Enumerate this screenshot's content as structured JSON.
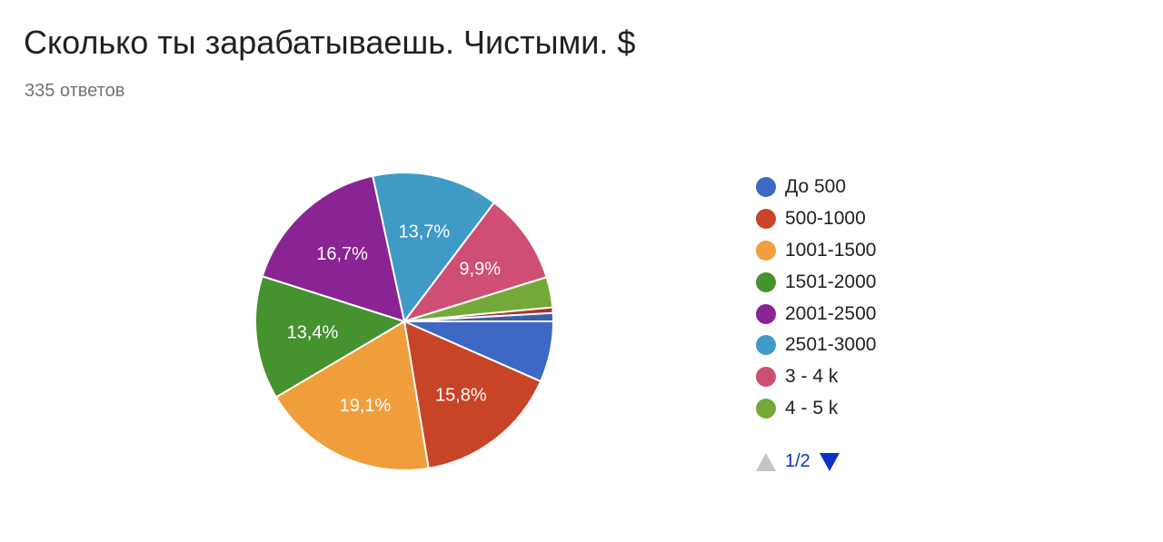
{
  "title": "Сколько ты зарабатываешь. Чистыми. $",
  "response_count": "335 ответов",
  "pager": {
    "label": "1/2",
    "up_icon": "triangle-up-icon",
    "down_icon": "triangle-down-icon"
  },
  "chart_data": {
    "type": "pie",
    "title": "Сколько ты зарабатываешь. Чистыми. $",
    "slices": [
      {
        "label": "До 500",
        "value": 6.6,
        "color": "#3e68c6"
      },
      {
        "label": "500-1000",
        "value": 15.8,
        "color": "#c84427",
        "display": "15,8%"
      },
      {
        "label": "1001-1500",
        "value": 19.1,
        "color": "#f09e3b",
        "display": "19,1%"
      },
      {
        "label": "1501-2000",
        "value": 13.4,
        "color": "#45922f",
        "display": "13,4%"
      },
      {
        "label": "2001-2500",
        "value": 16.7,
        "color": "#8a2394",
        "display": "16,7%"
      },
      {
        "label": "2501-3000",
        "value": 13.7,
        "color": "#3f9ac6",
        "display": "13,7%"
      },
      {
        "label": "3 - 4 k",
        "value": 9.9,
        "color": "#cf4f74",
        "display": "9,9%"
      },
      {
        "label": "4 - 5 k",
        "value": 3.3,
        "color": "#75a937"
      },
      {
        "label": "",
        "value": 0.6,
        "color": "#a8342f"
      },
      {
        "label": "",
        "value": 0.9,
        "color": "#3d5ea6"
      }
    ],
    "legend": [
      "До 500",
      "500-1000",
      "1001-1500",
      "1501-2000",
      "2001-2500",
      "2501-3000",
      "3 - 4 k",
      "4 - 5 k"
    ],
    "legend_position": "right",
    "start": "right, clockwise"
  }
}
